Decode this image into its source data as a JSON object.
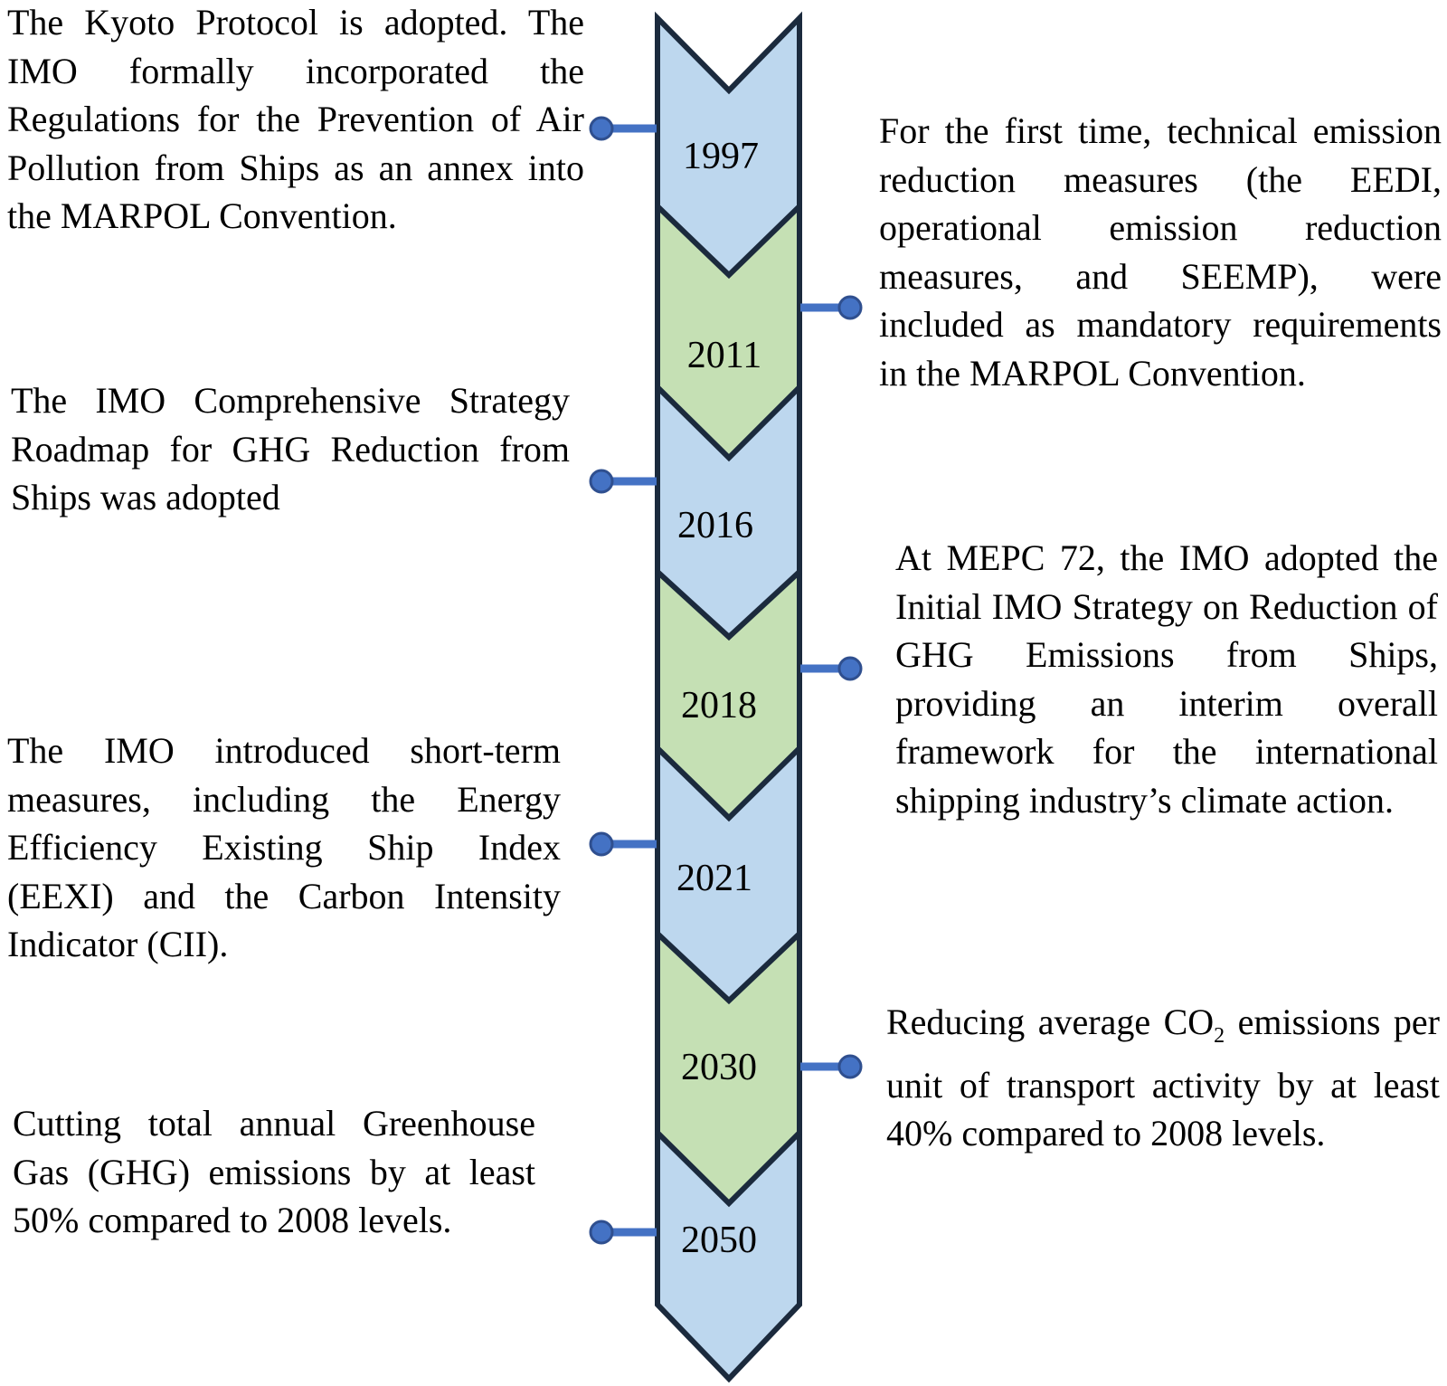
{
  "timeline": {
    "colors": {
      "blue_fill": "#bdd7ee",
      "green_fill": "#c5e0b4",
      "outline": "#1b2a3d",
      "connector": "#4472c4",
      "dot_outline": "#2f4f8f"
    },
    "events": [
      {
        "year": "1997",
        "fill": "blue",
        "side": "left",
        "text": "The Kyoto Protocol is adopted. The IMO formally incorporated the Regulations for the Prevention of Air Pollution from Ships as an annex into the MARPOL Convention."
      },
      {
        "year": "2011",
        "fill": "green",
        "side": "right",
        "text": "For the first time, technical emission reduction measures (the EEDI, operational emission reduction measures, and SEEMP), were included as mandatory requirements in the MARPOL Convention."
      },
      {
        "year": "2016",
        "fill": "blue",
        "side": "left",
        "text": "The IMO Comprehensive Strategy Roadmap for GHG Reduction from Ships was adopted"
      },
      {
        "year": "2018",
        "fill": "green",
        "side": "right",
        "text": "At MEPC 72, the IMO adopted the Initial IMO Strategy on Reduction of GHG Emissions from Ships, providing an interim overall framework for the international shipping industry’s climate action."
      },
      {
        "year": "2021",
        "fill": "blue",
        "side": "left",
        "text": "The IMO introduced short-term measures, including the Energy Efficiency Existing Ship Index (EEXI) and the Carbon Intensity Indicator (CII)."
      },
      {
        "year": "2030",
        "fill": "green",
        "side": "right",
        "text_before": "Reducing average CO",
        "text_sub": "2",
        "text_after": " emissions per unit of transport activity by at least 40% compared to 2008 levels."
      },
      {
        "year": "2050",
        "fill": "blue",
        "side": "left",
        "text": "Cutting total annual Greenhouse Gas (GHG) emissions by at least 50% compared to 2008 levels."
      }
    ]
  }
}
